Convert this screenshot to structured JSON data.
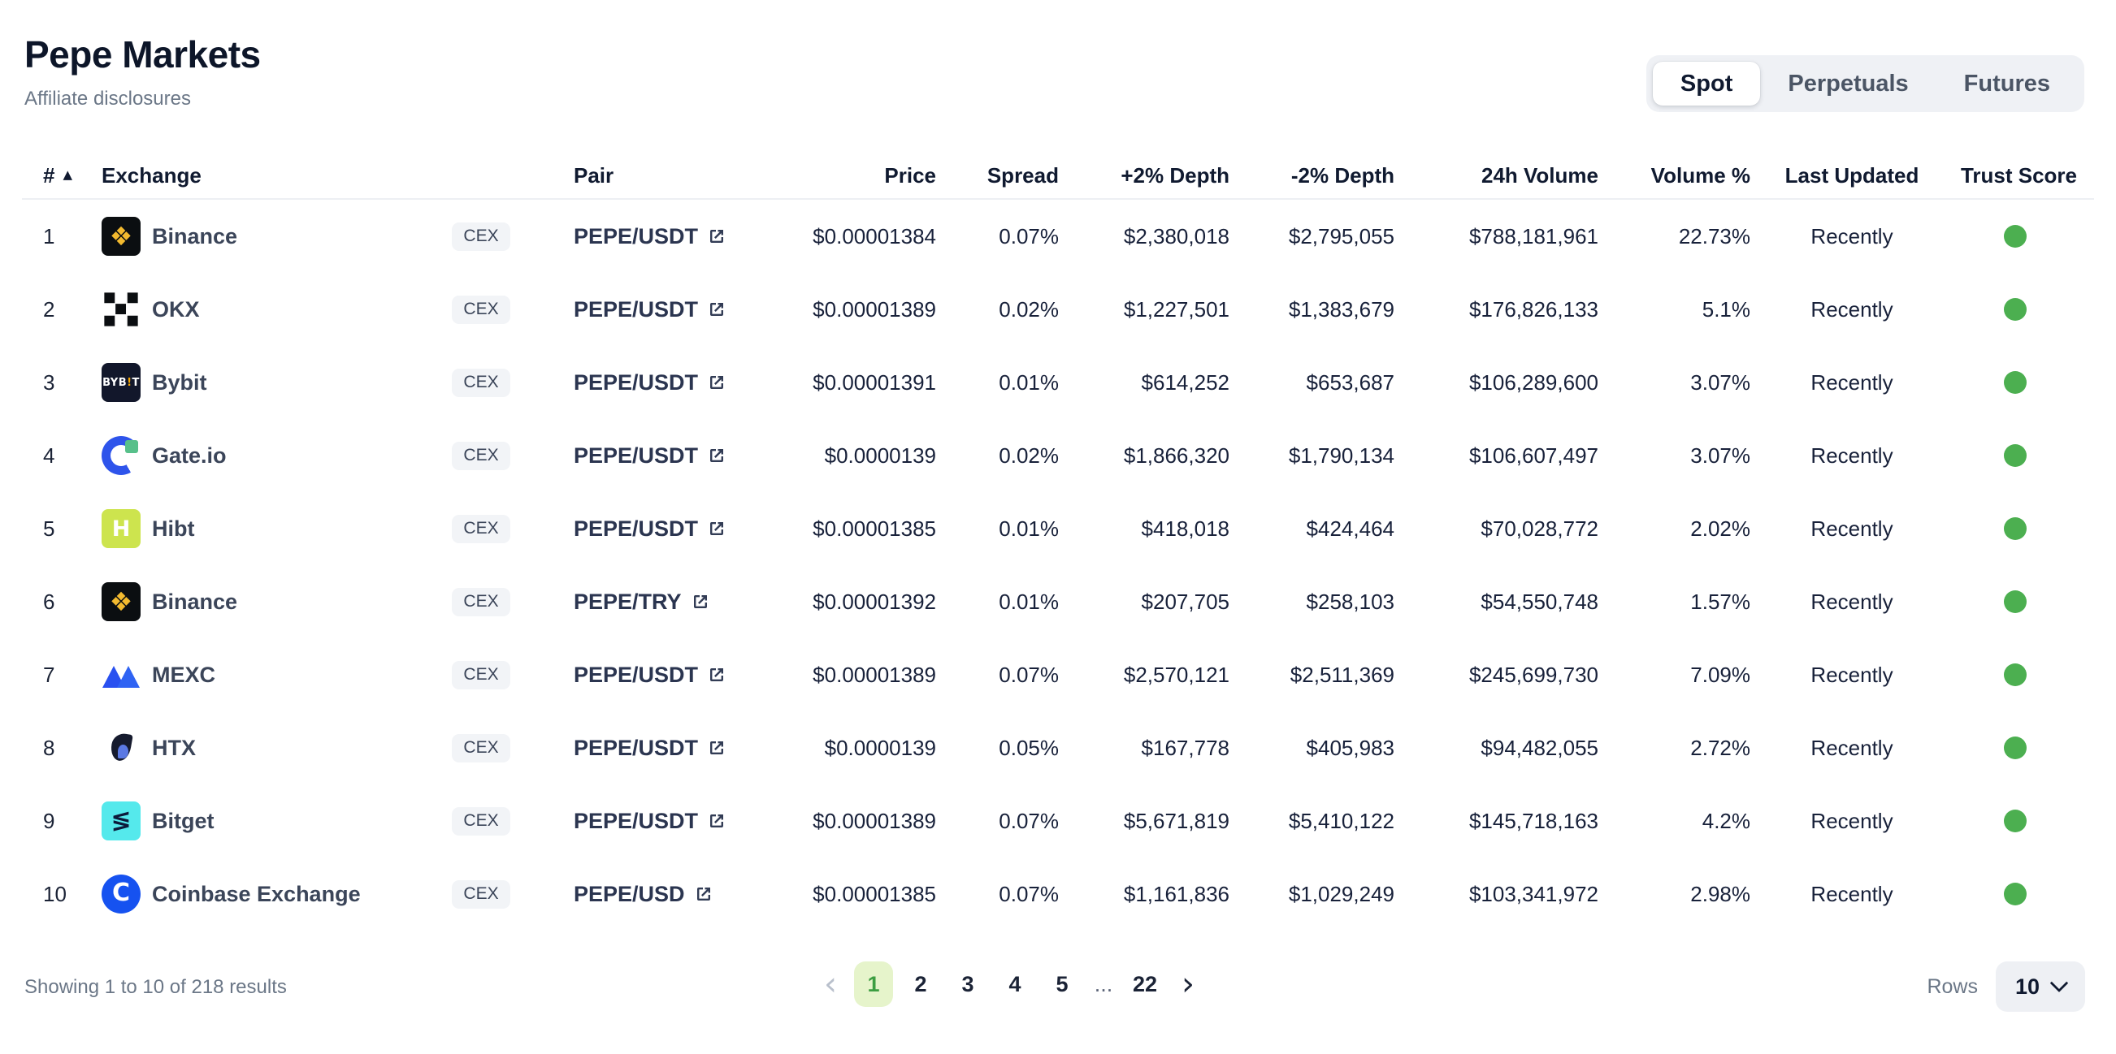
{
  "page": {
    "title": "Pepe Markets",
    "subtitle": "Affiliate disclosures"
  },
  "tabs": [
    {
      "label": "Spot",
      "active": true
    },
    {
      "label": "Perpetuals",
      "active": false
    },
    {
      "label": "Futures",
      "active": false
    }
  ],
  "table": {
    "headers": {
      "rank": "#",
      "exchange": "Exchange",
      "pair": "Pair",
      "price": "Price",
      "spread": "Spread",
      "depth_plus": "+2% Depth",
      "depth_minus": "-2% Depth",
      "volume": "24h Volume",
      "volume_pct": "Volume %",
      "updated": "Last Updated",
      "trust": "Trust Score"
    },
    "sort_icon": "▲",
    "rows": [
      {
        "rank": "1",
        "exchange": "Binance",
        "type": "CEX",
        "pair": "PEPE/USDT",
        "price": "$0.00001384",
        "spread": "0.07%",
        "depth_plus": "$2,380,018",
        "depth_minus": "$2,795,055",
        "volume": "$788,181,961",
        "volume_pct": "22.73%",
        "updated": "Recently",
        "trust_color": "#4caf50",
        "logo": {
          "style": "binance",
          "glyph": "❖",
          "bg": "#0b0e11"
        }
      },
      {
        "rank": "2",
        "exchange": "OKX",
        "type": "CEX",
        "pair": "PEPE/USDT",
        "price": "$0.00001389",
        "spread": "0.02%",
        "depth_plus": "$1,227,501",
        "depth_minus": "$1,383,679",
        "volume": "$176,826,133",
        "volume_pct": "5.1%",
        "updated": "Recently",
        "trust_color": "#4caf50",
        "logo": {
          "style": "okx",
          "glyph": "",
          "bg": ""
        }
      },
      {
        "rank": "3",
        "exchange": "Bybit",
        "type": "CEX",
        "pair": "PEPE/USDT",
        "price": "$0.00001391",
        "spread": "0.01%",
        "depth_plus": "$614,252",
        "depth_minus": "$653,687",
        "volume": "$106,289,600",
        "volume_pct": "3.07%",
        "updated": "Recently",
        "trust_color": "#4caf50",
        "logo": {
          "style": "bybit",
          "glyph": "BYB!T",
          "bg": "#12172b"
        }
      },
      {
        "rank": "4",
        "exchange": "Gate.io",
        "type": "CEX",
        "pair": "PEPE/USDT",
        "price": "$0.0000139",
        "spread": "0.02%",
        "depth_plus": "$1,866,320",
        "depth_minus": "$1,790,134",
        "volume": "$106,607,497",
        "volume_pct": "3.07%",
        "updated": "Recently",
        "trust_color": "#4caf50",
        "logo": {
          "style": "gateio",
          "glyph": "",
          "bg": ""
        }
      },
      {
        "rank": "5",
        "exchange": "Hibt",
        "type": "CEX",
        "pair": "PEPE/USDT",
        "price": "$0.00001385",
        "spread": "0.01%",
        "depth_plus": "$418,018",
        "depth_minus": "$424,464",
        "volume": "$70,028,772",
        "volume_pct": "2.02%",
        "updated": "Recently",
        "trust_color": "#4caf50",
        "logo": {
          "style": "hibt",
          "glyph": "H",
          "bg": "#cde44e"
        }
      },
      {
        "rank": "6",
        "exchange": "Binance",
        "type": "CEX",
        "pair": "PEPE/TRY",
        "price": "$0.00001392",
        "spread": "0.01%",
        "depth_plus": "$207,705",
        "depth_minus": "$258,103",
        "volume": "$54,550,748",
        "volume_pct": "1.57%",
        "updated": "Recently",
        "trust_color": "#4caf50",
        "logo": {
          "style": "binance",
          "glyph": "❖",
          "bg": "#0b0e11"
        }
      },
      {
        "rank": "7",
        "exchange": "MEXC",
        "type": "CEX",
        "pair": "PEPE/USDT",
        "price": "$0.00001389",
        "spread": "0.07%",
        "depth_plus": "$2,570,121",
        "depth_minus": "$2,511,369",
        "volume": "$245,699,730",
        "volume_pct": "7.09%",
        "updated": "Recently",
        "trust_color": "#4caf50",
        "logo": {
          "style": "mexc",
          "glyph": "",
          "bg": ""
        }
      },
      {
        "rank": "8",
        "exchange": "HTX",
        "type": "CEX",
        "pair": "PEPE/USDT",
        "price": "$0.0000139",
        "spread": "0.05%",
        "depth_plus": "$167,778",
        "depth_minus": "$405,983",
        "volume": "$94,482,055",
        "volume_pct": "2.72%",
        "updated": "Recently",
        "trust_color": "#4caf50",
        "logo": {
          "style": "htx",
          "glyph": "",
          "bg": ""
        }
      },
      {
        "rank": "9",
        "exchange": "Bitget",
        "type": "CEX",
        "pair": "PEPE/USDT",
        "price": "$0.00001389",
        "spread": "0.07%",
        "depth_plus": "$5,671,819",
        "depth_minus": "$5,410,122",
        "volume": "$145,718,163",
        "volume_pct": "4.2%",
        "updated": "Recently",
        "trust_color": "#4caf50",
        "logo": {
          "style": "bitget",
          "glyph": "≶",
          "bg": "#55e9ec"
        }
      },
      {
        "rank": "10",
        "exchange": "Coinbase Exchange",
        "type": "CEX",
        "pair": "PEPE/USD",
        "price": "$0.00001385",
        "spread": "0.07%",
        "depth_plus": "$1,161,836",
        "depth_minus": "$1,029,249",
        "volume": "$103,341,972",
        "volume_pct": "2.98%",
        "updated": "Recently",
        "trust_color": "#4caf50",
        "logo": {
          "style": "coinbase",
          "glyph": "C",
          "bg": "#1652f0"
        }
      }
    ]
  },
  "footer": {
    "showing": "Showing 1 to 10 of 218 results",
    "prev_icon": "‹",
    "next_icon": "›",
    "pages": [
      {
        "label": "1",
        "active": true
      },
      {
        "label": "2",
        "active": false
      },
      {
        "label": "3",
        "active": false
      },
      {
        "label": "4",
        "active": false
      },
      {
        "label": "5",
        "active": false
      },
      {
        "label": "...",
        "active": false,
        "ellipsis": true
      },
      {
        "label": "22",
        "active": false
      }
    ],
    "rows_label": "Rows",
    "rows_value": "10"
  },
  "colors": {
    "accent_green": "#4caf50",
    "active_page_bg": "#e6f4cb",
    "active_page_text": "#3d9e42",
    "dark_text": "#18213a"
  }
}
